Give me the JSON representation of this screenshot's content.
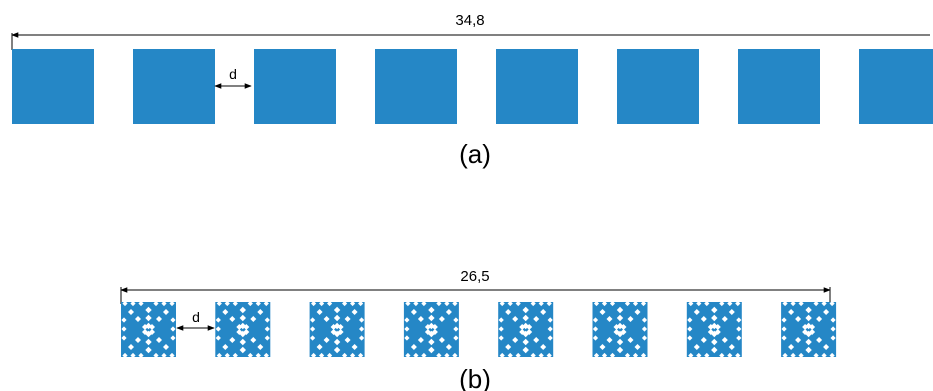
{
  "colors": {
    "element_fill": "#2587c6",
    "line": "#000000",
    "background": "#ffffff"
  },
  "array_a": {
    "overall_length_label": "34,8",
    "gap_label": "d",
    "caption": "(a)",
    "element_count": 8,
    "element_shape": "solid-square"
  },
  "array_b": {
    "overall_length_label": "26,5",
    "gap_label": "d",
    "caption": "(b)",
    "element_count": 8,
    "element_shape": "fractal-cut-square"
  }
}
